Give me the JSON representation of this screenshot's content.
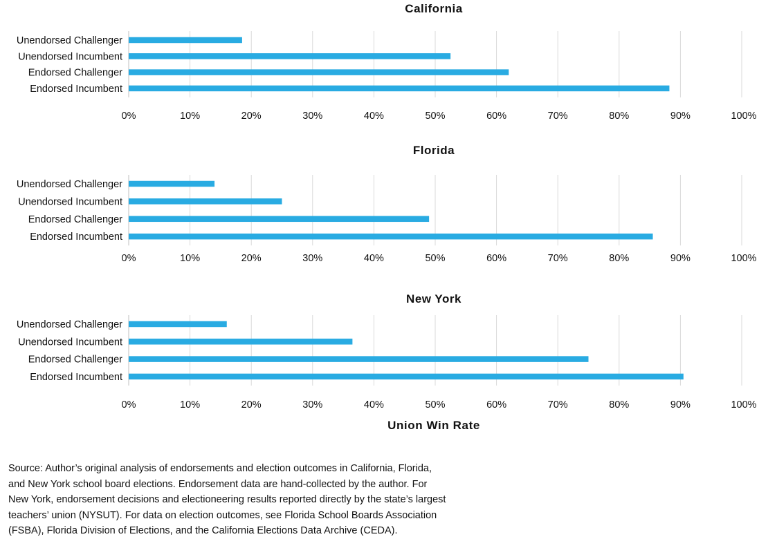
{
  "chart_data": [
    {
      "type": "bar",
      "orientation": "horizontal",
      "title": "California",
      "categories": [
        "Unendorsed Challenger",
        "Unendorsed Incumbent",
        "Endorsed Challenger",
        "Endorsed Incumbent"
      ],
      "values": [
        0.185,
        0.525,
        0.62,
        0.882
      ],
      "xlim": [
        0,
        1
      ],
      "xticks": [
        "0%",
        "10%",
        "20%",
        "30%",
        "40%",
        "50%",
        "60%",
        "70%",
        "80%",
        "90%",
        "100%"
      ],
      "grid": true,
      "color": "#29abe2"
    },
    {
      "type": "bar",
      "orientation": "horizontal",
      "title": "Florida",
      "categories": [
        "Unendorsed Challenger",
        "Unendorsed Incumbent",
        "Endorsed Challenger",
        "Endorsed Incumbent"
      ],
      "values": [
        0.14,
        0.25,
        0.49,
        0.855
      ],
      "xlim": [
        0,
        1
      ],
      "xticks": [
        "0%",
        "10%",
        "20%",
        "30%",
        "40%",
        "50%",
        "60%",
        "70%",
        "80%",
        "90%",
        "100%"
      ],
      "grid": true,
      "color": "#29abe2"
    },
    {
      "type": "bar",
      "orientation": "horizontal",
      "title": "New York",
      "categories": [
        "Unendorsed Challenger",
        "Unendorsed Incumbent",
        "Endorsed Challenger",
        "Endorsed Incumbent"
      ],
      "values": [
        0.16,
        0.365,
        0.75,
        0.905
      ],
      "xlim": [
        0,
        1
      ],
      "xticks": [
        "0%",
        "10%",
        "20%",
        "30%",
        "40%",
        "50%",
        "60%",
        "70%",
        "80%",
        "90%",
        "100%"
      ],
      "grid": true,
      "color": "#29abe2",
      "xlabel": "Union Win Rate"
    }
  ],
  "source_note": "Source: Author’s original analysis of endorsements and election outcomes in California, Florida,\nand New York school board elections. Endorsement data are hand-collected by the author. For\nNew York, endorsement decisions and electioneering results reported directly by the state’s largest\nteachers’ union (NYSUT). For data on election outcomes, see Florida School Boards Association\n(FSBA), Florida Division of Elections, and the California Elections Data Archive (CEDA).",
  "colors": {
    "bar": "#29abe2",
    "grid": "#d9d9d9",
    "text": "#111111"
  }
}
